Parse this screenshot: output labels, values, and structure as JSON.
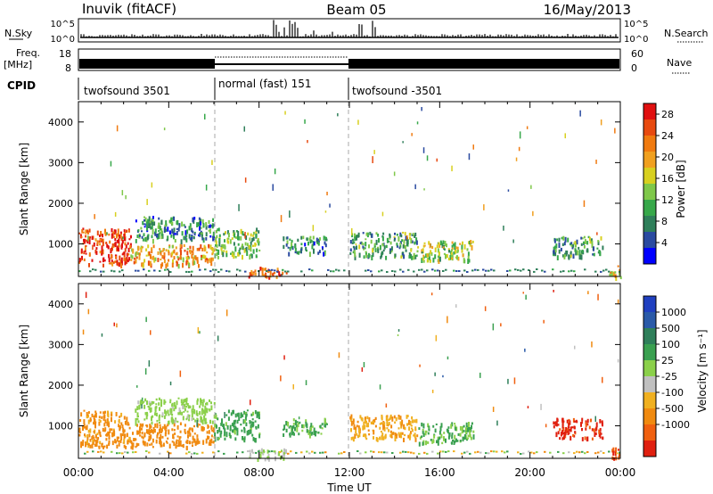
{
  "header": {
    "station": "Inuvik (fitACF)",
    "beam": "Beam 05",
    "date": "16/May/2013"
  },
  "sky_panel": {
    "left_label": "N.Sky",
    "ticks": [
      "10^5",
      "10^0"
    ],
    "right_label": "N.Search",
    "right_ticks": [
      "10^5",
      "10^0"
    ]
  },
  "freq_panel": {
    "left_label_1": "Freq.",
    "left_label_2": "[MHz]",
    "ticks": [
      "18",
      "8"
    ],
    "right_label": "Nave",
    "right_ticks": [
      "60",
      "0"
    ]
  },
  "cpid_panel": {
    "label": "CPID",
    "segments": [
      "twofsound 3501",
      "normal (fast) 151",
      "twofsound -3501"
    ]
  },
  "axes": {
    "ylabel": "Slant Range [km]",
    "yticks": [
      "1000",
      "2000",
      "3000",
      "4000"
    ],
    "xticks": [
      "00:00",
      "04:00",
      "08:00",
      "12:00",
      "16:00",
      "20:00",
      "00:00"
    ],
    "xlabel": "Time UT"
  },
  "power_scale": {
    "label": "Power [dB]",
    "ticks": [
      "4",
      "8",
      "12",
      "16",
      "20",
      "24",
      "28"
    ],
    "colors": [
      "#0000ff",
      "#2a4aa0",
      "#2f7f5a",
      "#37a84a",
      "#7fc84a",
      "#d8d020",
      "#f0a020",
      "#f07a10",
      "#e84a10",
      "#e01010"
    ]
  },
  "velocity_scale": {
    "label": "Velocity [m s⁻¹]",
    "ticks": [
      "1000",
      "500",
      "100",
      "25",
      "-25",
      "-100",
      "-500",
      "-1000"
    ],
    "colors": [
      "#2040c0",
      "#2a5aa8",
      "#2f7f5a",
      "#3aa050",
      "#8bd04a",
      "#c0c0c0",
      "#f0b020",
      "#f08a10",
      "#f06010",
      "#e02010"
    ]
  },
  "chart_data": [
    {
      "type": "heatmap",
      "title": "",
      "quantity": "Power",
      "xlabel": "Time UT",
      "ylabel": "Slant Range [km]",
      "xlim": [
        0,
        24
      ],
      "ylim": [
        200,
        4500
      ],
      "colorbar_label": "Power [dB]",
      "colorbar_ticks": [
        4,
        8,
        12,
        16,
        20,
        24,
        28
      ],
      "features": [
        {
          "t": [
            0.0,
            2.3
          ],
          "range": [
            500,
            1400
          ],
          "value_db": 26
        },
        {
          "t": [
            2.3,
            6.0
          ],
          "range": [
            500,
            1000
          ],
          "value_db": 20
        },
        {
          "t": [
            2.5,
            6.0
          ],
          "range": [
            1100,
            1700
          ],
          "value_db": 8
        },
        {
          "t": [
            6.0,
            8.0
          ],
          "range": [
            700,
            1400
          ],
          "value_db": 12
        },
        {
          "t": [
            7.5,
            9.2
          ],
          "range": [
            200,
            450
          ],
          "value_db": 24
        },
        {
          "t": [
            9.0,
            11.0
          ],
          "range": [
            800,
            1200
          ],
          "value_db": 8
        },
        {
          "t": [
            12.0,
            15.0
          ],
          "range": [
            700,
            1300
          ],
          "value_db": 10
        },
        {
          "t": [
            15.0,
            17.5
          ],
          "range": [
            600,
            1100
          ],
          "value_db": 14
        },
        {
          "t": [
            21.0,
            23.2
          ],
          "range": [
            700,
            1200
          ],
          "value_db": 10
        },
        {
          "t": [
            23.5,
            24.0
          ],
          "range": [
            200,
            500
          ],
          "value_db": 18
        }
      ]
    },
    {
      "type": "heatmap",
      "title": "",
      "quantity": "Velocity",
      "xlabel": "Time UT",
      "ylabel": "Slant Range [km]",
      "xlim": [
        0,
        24
      ],
      "ylim": [
        200,
        4500
      ],
      "colorbar_label": "Velocity [m s⁻¹]",
      "colorbar_ticks": [
        1000,
        500,
        100,
        25,
        -25,
        -100,
        -500,
        -1000
      ],
      "features": [
        {
          "t": [
            0.0,
            2.3
          ],
          "range": [
            500,
            1400
          ],
          "value_ms": -150
        },
        {
          "t": [
            2.3,
            6.0
          ],
          "range": [
            500,
            1100
          ],
          "value_ms": -200
        },
        {
          "t": [
            2.5,
            6.0
          ],
          "range": [
            1100,
            1700
          ],
          "value_ms": 60
        },
        {
          "t": [
            6.0,
            8.0
          ],
          "range": [
            700,
            1400
          ],
          "value_ms": 150
        },
        {
          "t": [
            7.5,
            9.2
          ],
          "range": [
            200,
            450
          ],
          "value_ms": 20
        },
        {
          "t": [
            9.0,
            11.0
          ],
          "range": [
            800,
            1200
          ],
          "value_ms": 120
        },
        {
          "t": [
            12.0,
            15.0
          ],
          "range": [
            700,
            1300
          ],
          "value_ms": -80
        },
        {
          "t": [
            15.0,
            17.5
          ],
          "range": [
            600,
            1100
          ],
          "value_ms": 120
        },
        {
          "t": [
            21.0,
            23.2
          ],
          "range": [
            700,
            1200
          ],
          "value_ms": -700
        },
        {
          "t": [
            23.5,
            24.0
          ],
          "range": [
            200,
            500
          ],
          "value_ms": -600
        }
      ]
    }
  ]
}
